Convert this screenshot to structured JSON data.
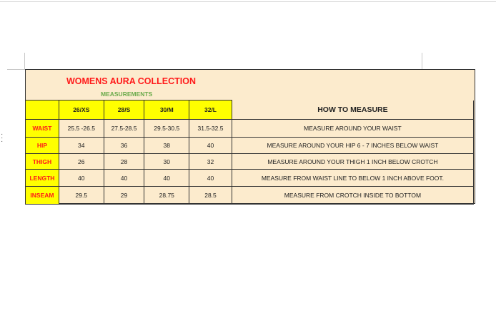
{
  "title": "WOMENS AURA COLLECTION",
  "subtitle": "MEASUREMENTS",
  "how_header": "HOW TO MEASURE",
  "sizes": [
    "26/XS",
    "28/S",
    "30/M",
    "32/L"
  ],
  "rows": [
    {
      "label": "WAIST",
      "values": [
        "25.5 -26.5",
        "27.5-28.5",
        "29.5-30.5",
        "31.5-32.5"
      ],
      "how": "MEASURE AROUND YOUR WAIST"
    },
    {
      "label": "HIP",
      "values": [
        "34",
        "36",
        "38",
        "40"
      ],
      "how": "MEASURE AROUND YOUR HIP 6 - 7 INCHES BELOW WAIST"
    },
    {
      "label": "THIGH",
      "values": [
        "26",
        "28",
        "30",
        "32"
      ],
      "how": "MEASURE AROUND YOUR THIGH 1 INCH BELOW CROTCH"
    },
    {
      "label": "LENGTH",
      "values": [
        "40",
        "40",
        "40",
        "40"
      ],
      "how": "MEASURE FROM WAIST LINE TO BELOW 1 INCH ABOVE FOOT."
    },
    {
      "label": "INSEAM",
      "values": [
        "29.5",
        "29",
        "28.75",
        "28.5"
      ],
      "how": "MEASURE FROM CROTCH INSIDE TO BOTTOM"
    }
  ],
  "colors": {
    "header_fill": "#ffff00",
    "sheet_fill": "#fcebcd",
    "title": "#ff1a1a",
    "subtitle": "#6aaa4a"
  }
}
